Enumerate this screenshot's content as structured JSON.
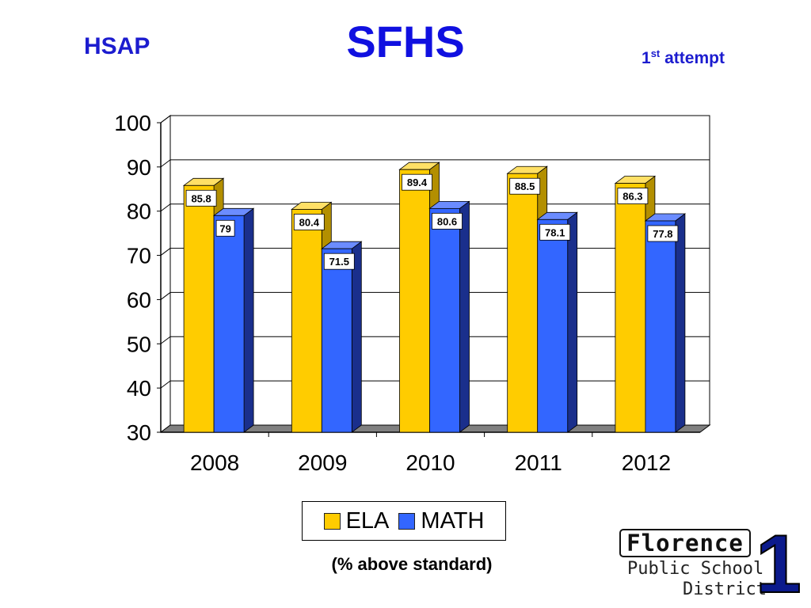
{
  "header": {
    "left_label": "HSAP",
    "title": "SFHS",
    "attempt_number": "1",
    "attempt_suffix": "st",
    "attempt_word": "attempt"
  },
  "colors": {
    "title_blue": "#1010e0",
    "ela": "#ffcc00",
    "math": "#3366ff"
  },
  "chart_data": {
    "type": "bar",
    "categories": [
      "2008",
      "2009",
      "2010",
      "2011",
      "2012"
    ],
    "series": [
      {
        "name": "ELA",
        "values": [
          85.8,
          80.4,
          89.4,
          88.5,
          86.3
        ],
        "labels": [
          "85.8",
          "80.4",
          "89.4",
          "88.5",
          "86.3"
        ]
      },
      {
        "name": "MATH",
        "values": [
          79,
          71.5,
          80.6,
          78.1,
          77.8
        ],
        "labels": [
          "79",
          "71.5",
          "80.6",
          "78.1",
          "77.8"
        ]
      }
    ],
    "ylim": [
      30,
      100
    ],
    "yticks": [
      30,
      40,
      50,
      60,
      70,
      80,
      90,
      100
    ],
    "grid": true,
    "legend": "bottom"
  },
  "footnote": "(% above standard)",
  "logo": {
    "word": "Florence",
    "line1": "Public School",
    "line2": "District",
    "number": "1"
  }
}
